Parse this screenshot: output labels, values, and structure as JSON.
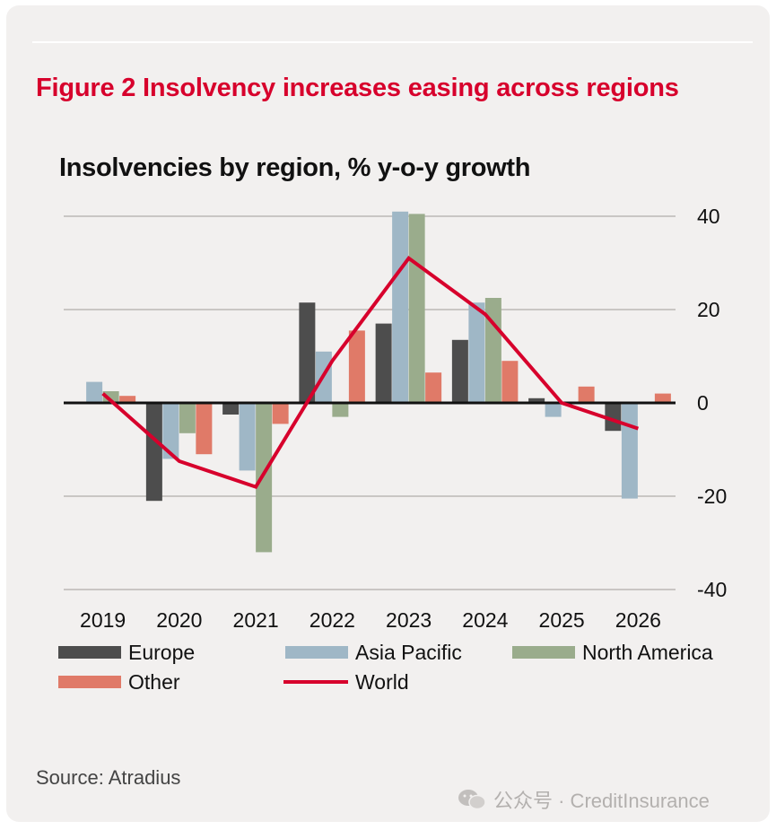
{
  "figure_title": "Figure 2 Insolvency increases easing across regions",
  "source": "Source: Atradius",
  "watermark": "公众号 · CreditInsurance",
  "colors": {
    "figure_title": "#d7002c",
    "europe": "#4d4d4d",
    "asia_pacific": "#9fb7c6",
    "north_america": "#9aac8c",
    "other": "#e07a68",
    "world": "#d7002c"
  },
  "chart_data": {
    "type": "bar",
    "title": "Insolvencies by region, % y-o-y growth",
    "categories": [
      "2019",
      "2020",
      "2021",
      "2022",
      "2023",
      "2024",
      "2025",
      "2026"
    ],
    "ylim": [
      -40,
      40
    ],
    "yticks": [
      40,
      20,
      0,
      -20,
      -40
    ],
    "ytick_labels": [
      "40",
      "20",
      "0",
      "-20",
      "-40"
    ],
    "y_axis_position": "right",
    "grid": true,
    "legend_position": "bottom",
    "series": [
      {
        "name": "Europe",
        "type": "bar",
        "color": "#4d4d4d",
        "values": [
          0,
          -21,
          -2.5,
          21.5,
          17,
          13.5,
          1,
          -6
        ]
      },
      {
        "name": "Asia Pacific",
        "type": "bar",
        "color": "#9fb7c6",
        "values": [
          4.5,
          -12,
          -14.5,
          11,
          41,
          21.5,
          -3,
          -20.5
        ]
      },
      {
        "name": "North America",
        "type": "bar",
        "color": "#9aac8c",
        "values": [
          2.5,
          -6.5,
          -32,
          -3,
          40.5,
          22.5,
          0,
          0
        ]
      },
      {
        "name": "Other",
        "type": "bar",
        "color": "#e07a68",
        "values": [
          1.5,
          -11,
          -4.5,
          15.5,
          6.5,
          9,
          3.5,
          2
        ]
      },
      {
        "name": "World",
        "type": "line",
        "color": "#d7002c",
        "values": [
          2,
          -12.5,
          -18,
          9,
          31,
          19,
          0,
          -5.5
        ]
      }
    ]
  }
}
